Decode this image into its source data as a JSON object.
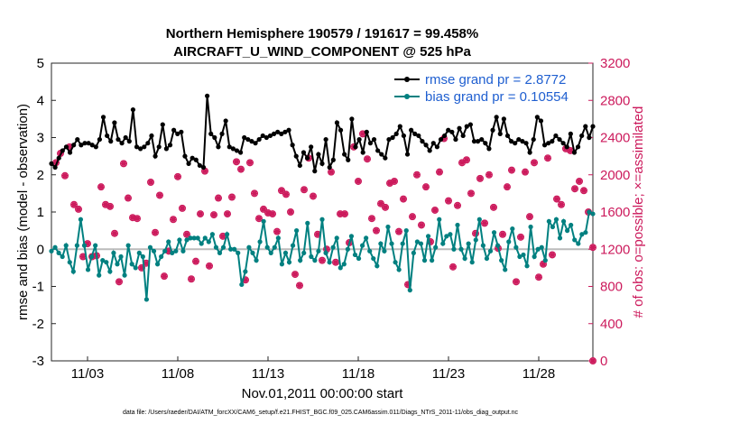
{
  "chart_data": {
    "type": "line",
    "title": "Northern Hemisphere 190579 / 191617 = 99.458%",
    "subtitle": "AIRCRAFT_U_WIND_COMPONENT @ 525 hPa",
    "xlabel": "Nov.01,2011 00:00:00 start",
    "ylabel": "rmse and bias (model - observation)",
    "ylabel_right": "# of obs: o=possible; ×=assimilated",
    "xlim": [
      1.0,
      31.0
    ],
    "ylim": [
      -3,
      5
    ],
    "ylim_right": [
      0,
      3200
    ],
    "x_ticks": [
      3,
      8,
      13,
      18,
      23,
      28
    ],
    "x_tick_labels": [
      "11/03",
      "11/08",
      "11/13",
      "11/18",
      "11/23",
      "11/28"
    ],
    "y_ticks": [
      -3,
      -2,
      -1,
      0,
      1,
      2,
      3,
      4,
      5
    ],
    "y_ticks_right": [
      0,
      400,
      800,
      1200,
      1600,
      2000,
      2400,
      2800,
      3200
    ],
    "legend_position": "top-right",
    "footnote": "data file: /Users/raeder/DAI/ATM_forcXX/CAM6_setup/f.e21.FHIST_BGC.f09_025.CAM6assim.011/Diags_NTrS_2011-11/obs_diag_output.nc",
    "colors": {
      "rmse": "#000000",
      "bias": "#008080",
      "obs": "#cc1a5c",
      "zero_line": "#bbbbbb"
    },
    "series": [
      {
        "name": "rmse grand pr = 2.8772",
        "axis": "left",
        "values": [
          2.3,
          2.2,
          2.45,
          2.65,
          2.75,
          2.6,
          2.8,
          2.95,
          2.8,
          2.85,
          2.85,
          2.8,
          2.75,
          2.95,
          3.55,
          3.05,
          2.9,
          3.4,
          2.95,
          2.85,
          3.0,
          2.9,
          3.75,
          2.75,
          2.7,
          2.75,
          2.85,
          3.05,
          2.5,
          2.75,
          3.35,
          2.7,
          2.8,
          3.2,
          3.1,
          3.15,
          2.5,
          2.3,
          2.45,
          2.4,
          2.25,
          2.2,
          4.12,
          3.1,
          3.0,
          2.75,
          3.1,
          3.45,
          2.75,
          2.7,
          2.65,
          2.6,
          3.0,
          2.95,
          2.9,
          2.85,
          2.95,
          3.05,
          3.0,
          3.05,
          3.1,
          3.15,
          3.1,
          3.15,
          3.2,
          2.8,
          2.5,
          2.25,
          2.6,
          2.45,
          2.75,
          2.1,
          2.55,
          2.3,
          2.95,
          2.2,
          2.4,
          3.4,
          3.2,
          2.55,
          2.4,
          3.5,
          2.75,
          2.95,
          2.6,
          3.15,
          2.85,
          2.95,
          2.65,
          2.55,
          2.45,
          2.95,
          3.0,
          3.1,
          3.3,
          3.05,
          2.55,
          3.2,
          3.1,
          3.05,
          2.9,
          2.8,
          2.65,
          2.85,
          2.75,
          2.95,
          3.05,
          3.2,
          3.15,
          2.95,
          3.25,
          3.05,
          3.3,
          3.35,
          2.9,
          2.9,
          2.95,
          2.85,
          2.7,
          3.2,
          3.55,
          3.1,
          3.5,
          3.05,
          2.9,
          2.85,
          2.95,
          2.9,
          2.85,
          2.6,
          2.95,
          3.55,
          3.45,
          2.8,
          2.85,
          2.9,
          3.05,
          2.95,
          2.85,
          2.75,
          3.1,
          2.6,
          2.75,
          3.05,
          3.3,
          3.0,
          3.3
        ]
      },
      {
        "name": "bias grand pr = 0.10554",
        "axis": "left",
        "values": [
          -0.05,
          0.05,
          -0.1,
          -0.2,
          0.1,
          -0.35,
          -0.6,
          0.1,
          0.8,
          0.1,
          -0.55,
          -0.2,
          0.1,
          -0.7,
          -0.3,
          -0.35,
          -0.6,
          -0.1,
          -0.4,
          -0.2,
          -0.7,
          0.1,
          -0.4,
          -0.5,
          -0.1,
          -0.2,
          -1.35,
          0.05,
          -0.05,
          -0.4,
          -0.2,
          -0.05,
          0.2,
          -0.1,
          -0.05,
          0.25,
          -0.05,
          0.25,
          0.3,
          0.3,
          0.3,
          0.15,
          0.3,
          0.2,
          0.4,
          0.05,
          -0.1,
          0.05,
          0.4,
          0.0,
          0.0,
          -0.1,
          -0.95,
          -0.6,
          0.05,
          -0.1,
          -0.3,
          0.2,
          0.75,
          0.05,
          -0.1,
          0.05,
          0.3,
          -0.4,
          -0.1,
          -0.35,
          0.1,
          0.5,
          -0.3,
          -0.1,
          0.7,
          -0.2,
          -0.3,
          -0.05,
          0.8,
          -0.1,
          -0.35,
          0.05,
          0.3,
          -0.5,
          -0.4,
          0.0,
          0.35,
          -0.15,
          -0.25,
          0.1,
          0.3,
          -0.05,
          -0.25,
          -0.45,
          0.15,
          -0.05,
          0.6,
          0.15,
          -0.35,
          -0.55,
          0.15,
          0.5,
          -1.1,
          -0.1,
          0.2,
          0.15,
          -0.3,
          0.35,
          -0.3,
          0.05,
          0.8,
          0.15,
          0.35,
          0.4,
          0.0,
          0.65,
          0.0,
          -0.25,
          0.15,
          -0.35,
          0.25,
          0.8,
          0.1,
          -0.25,
          -0.05,
          0.45,
          0.1,
          -0.3,
          -0.55,
          0.2,
          0.55,
          0.05,
          -0.2,
          -0.15,
          -0.45,
          0.6,
          -0.2,
          0.0,
          0.05,
          -0.3,
          0.75,
          0.6,
          0.8,
          0.3,
          0.75,
          0.5,
          0.65,
          0.25,
          0.15,
          0.4,
          0.45,
          1.0,
          0.95
        ]
      }
    ],
    "obs_assimilated": {
      "axis": "right",
      "x": [
        1.25,
        1.75,
        2.25,
        2.75,
        3.25,
        3.75,
        4.25,
        4.75,
        5.25,
        5.75,
        6.25,
        6.75,
        7.25,
        7.75,
        8.25,
        8.75,
        9.25,
        9.75,
        10.25,
        10.75,
        11.25,
        11.75,
        12.25,
        12.75,
        13.25,
        13.75,
        14.25,
        14.75,
        15.25,
        15.75,
        16.25,
        16.75,
        17.25,
        17.75,
        18.25,
        18.75,
        19.25,
        19.75,
        20.25,
        20.75,
        21.25,
        21.75,
        22.25,
        22.75,
        23.25,
        23.75,
        24.25,
        24.75,
        25.25,
        25.75,
        26.25,
        26.75,
        27.25,
        27.75,
        28.25,
        28.75,
        29.25,
        29.75,
        30.25,
        30.75,
        1.5,
        2.0,
        2.5,
        3.0,
        3.5,
        4.0,
        4.5,
        5.0,
        5.5,
        6.0,
        6.5,
        7.0,
        7.5,
        8.0,
        8.5,
        9.0,
        9.5,
        10.0,
        10.5,
        11.0,
        11.5,
        12.0,
        12.5,
        13.0,
        13.5,
        14.0,
        14.5,
        15.0,
        15.5,
        16.0,
        16.5,
        17.0,
        17.5,
        18.0,
        18.5,
        19.0,
        19.5,
        20.0,
        20.5,
        21.0,
        21.5,
        22.0,
        22.5,
        23.0,
        23.5,
        24.0,
        24.5,
        25.0,
        25.5,
        26.0,
        26.5,
        27.0,
        27.5,
        28.0,
        28.5,
        29.0,
        29.5,
        30.0,
        30.5,
        31.0
      ],
      "y": [
        2130,
        1990,
        1680,
        1120,
        1120,
        1870,
        1660,
        850,
        1750,
        1530,
        1050,
        1380,
        910,
        1520,
        1640,
        880,
        1580,
        1020,
        1750,
        1580,
        2140,
        870,
        1800,
        1630,
        1580,
        1830,
        1600,
        810,
        2180,
        1360,
        1200,
        1060,
        1580,
        2300,
        2440,
        1530,
        1690,
        1910,
        1390,
        820,
        2000,
        1870,
        1620,
        2390,
        1010,
        2130,
        1800,
        1960,
        2000,
        1210,
        1870,
        850,
        2030,
        2130,
        1040,
        1140,
        1680,
        2260,
        1930,
        1600,
        2230,
        2300,
        1630,
        1260,
        1130,
        1680,
        1370,
        2120,
        1540,
        1000,
        1920,
        1780,
        1180,
        1980,
        1360,
        1070,
        2040,
        1570,
        1340,
        1760,
        2060,
        2130,
        1530,
        1590,
        1390,
        1790,
        930,
        1840,
        1770,
        1080,
        2030,
        1580,
        1270,
        1930,
        2170,
        1400,
        1650,
        1930,
        1740,
        1550,
        1460,
        1280,
        2030,
        1720,
        1670,
        2160,
        1370,
        1480,
        1650,
        1360,
        2050,
        1330,
        1550,
        900,
        2180,
        1740,
        2280,
        1850,
        1830,
        1220
      ],
      "x_extra": [
        31.0
      ],
      "y_extra": [
        0
      ]
    },
    "obs_possible": {
      "axis": "right",
      "x": [
        1.25,
        1.75,
        2.25,
        2.75,
        3.25,
        3.75,
        4.25,
        4.75,
        5.25,
        5.75,
        6.25,
        6.75,
        7.25,
        7.75,
        8.25,
        8.75,
        9.25,
        9.75,
        10.25,
        10.75,
        11.25,
        11.75,
        12.25,
        12.75,
        13.25,
        13.75,
        14.25,
        14.75,
        15.25,
        15.75,
        16.25,
        16.75,
        17.25,
        17.75,
        18.25,
        18.75,
        19.25,
        19.75,
        20.25,
        20.75,
        21.25,
        21.75,
        22.25,
        22.75,
        23.25,
        23.75,
        24.25,
        24.75,
        25.25,
        25.75,
        26.25,
        26.75,
        27.25,
        27.75,
        28.25,
        28.75,
        29.25,
        29.75,
        30.25,
        30.75,
        1.5,
        2.0,
        2.5,
        3.0,
        3.5,
        4.0,
        4.5,
        5.0,
        5.5,
        6.0,
        6.5,
        7.0,
        7.5,
        8.0,
        8.5,
        9.0,
        9.5,
        10.0,
        10.5,
        11.0,
        11.5,
        12.0,
        12.5,
        13.0,
        13.5,
        14.0,
        14.5,
        15.0,
        15.5,
        16.0,
        16.5,
        17.0,
        17.5,
        18.0,
        18.5,
        19.0,
        19.5,
        20.0,
        20.5,
        21.0,
        21.5,
        22.0,
        22.5,
        23.0,
        23.5,
        24.0,
        24.5,
        25.0,
        25.5,
        26.0,
        26.5,
        27.0,
        27.5,
        28.0,
        28.5,
        29.0,
        29.5,
        30.0,
        30.5,
        31.0
      ],
      "y": [
        2130,
        1990,
        1680,
        1120,
        1120,
        1870,
        1660,
        850,
        1750,
        1530,
        1050,
        1380,
        910,
        1520,
        1640,
        880,
        1580,
        1020,
        1750,
        1580,
        2140,
        870,
        1800,
        1630,
        1580,
        1830,
        1600,
        810,
        2180,
        1360,
        1200,
        1060,
        1580,
        2300,
        2440,
        1530,
        1690,
        1910,
        1390,
        820,
        2000,
        1870,
        1620,
        2390,
        1010,
        2130,
        1800,
        1960,
        2000,
        1210,
        1870,
        850,
        2030,
        2130,
        1040,
        1140,
        1680,
        2260,
        1930,
        1600,
        2230,
        2300,
        1630,
        1260,
        1130,
        1680,
        1370,
        2120,
        1540,
        1000,
        1920,
        1780,
        1180,
        1980,
        1360,
        1070,
        2040,
        1570,
        1340,
        1760,
        2060,
        2130,
        1530,
        1590,
        1390,
        1790,
        930,
        1840,
        1770,
        1080,
        2030,
        1580,
        1270,
        1930,
        2170,
        1400,
        1650,
        1930,
        1740,
        1550,
        1460,
        1280,
        2030,
        1720,
        1670,
        2160,
        1370,
        1480,
        1650,
        1360,
        2050,
        1330,
        1550,
        900,
        2180,
        1740,
        2280,
        1850,
        1830,
        1220
      ]
    }
  }
}
